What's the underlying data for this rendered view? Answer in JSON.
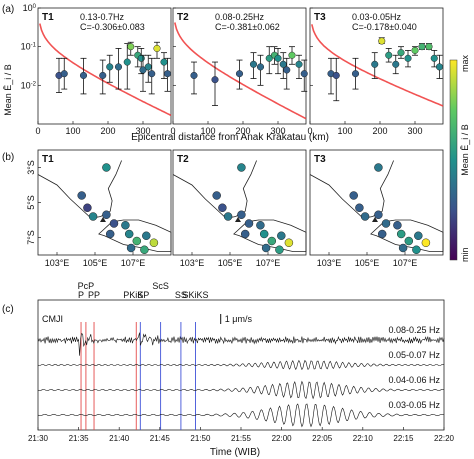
{
  "panel_a": {
    "label": "(a)",
    "ylabel": "Mean Ê_i / B",
    "xlabel": "Epicentral distance from Anak Krakatau (km)",
    "ytick_labels": [
      "10^0",
      "10^-1",
      "10^-2"
    ],
    "xtick_labels": [
      "0",
      "100",
      "200",
      "300"
    ]
  },
  "panel_b": {
    "label": "(b)",
    "ytick_labels": [
      "3°S",
      "5°S",
      "7°S"
    ],
    "xtick_labels": [
      "103°E",
      "105°E",
      "107°E"
    ],
    "titles": [
      "T1",
      "T2",
      "T3"
    ]
  },
  "colorbar": {
    "label": "Mean Ê_i / B",
    "max_label": "max",
    "min_label": "min",
    "colors": [
      "#440154",
      "#3b528b",
      "#21918c",
      "#5ec962",
      "#fde725"
    ]
  },
  "panel_c": {
    "label": "(c)",
    "station": "CMJI",
    "scale_label": "1 μm/s",
    "xlabel": "Time (WIB)",
    "xtick_labels": [
      "21:30",
      "21:35",
      "21:40",
      "21:45",
      "21:50",
      "21:55",
      "22:00",
      "22:05",
      "22:10",
      "22:15",
      "22:20"
    ],
    "trace_labels": [
      "0.08-0.25 Hz",
      "0.05-0.07 Hz",
      "0.04-0.06 Hz",
      "0.03-0.05 Hz"
    ],
    "phases": [
      {
        "name": "P",
        "time_min": 5.3,
        "group": "red"
      },
      {
        "name": "PcP",
        "time_min": 5.9,
        "group": "red"
      },
      {
        "name": "PP",
        "time_min": 6.9,
        "group": "red"
      },
      {
        "name": "PKiKP",
        "time_min": 12.1,
        "group": "red"
      },
      {
        "name": "S",
        "time_min": 12.6,
        "group": "blue"
      },
      {
        "name": "ScS",
        "time_min": 15.1,
        "group": "blue"
      },
      {
        "name": "SS",
        "time_min": 17.6,
        "group": "blue"
      },
      {
        "name": "SKiKS",
        "time_min": 19.4,
        "group": "blue"
      }
    ],
    "phase_colors": {
      "red": "#e34a4a",
      "blue": "#3f52d8"
    }
  },
  "chart_data": [
    {
      "type": "scatter",
      "panel": "T1",
      "title": "T1",
      "band": "0.13-0.7Hz",
      "corr": "C=-0.306±0.083",
      "xlim": [
        0,
        380
      ],
      "ylim_log10": [
        -3,
        0
      ],
      "fit": {
        "a": 0.42,
        "b": 0.0088
      },
      "points": [
        {
          "x": 60,
          "y": 0.018,
          "lo": 0.0065,
          "hi": 0.05,
          "c": 0.25
        },
        {
          "x": 75,
          "y": 0.02,
          "lo": 0.008,
          "hi": 0.05,
          "c": 0.3
        },
        {
          "x": 130,
          "y": 0.018,
          "lo": 0.006,
          "hi": 0.05,
          "c": 0.3
        },
        {
          "x": 185,
          "y": 0.018,
          "lo": 0.006,
          "hi": 0.045,
          "c": 0.3
        },
        {
          "x": 205,
          "y": 0.03,
          "lo": 0.012,
          "hi": 0.06,
          "c": 0.45
        },
        {
          "x": 230,
          "y": 0.03,
          "lo": 0.008,
          "hi": 0.09,
          "c": 0.35
        },
        {
          "x": 255,
          "y": 0.04,
          "lo": 0.008,
          "hi": 0.12,
          "c": 0.5
        },
        {
          "x": 265,
          "y": 0.1,
          "lo": 0.06,
          "hi": 0.13,
          "c": 0.8
        },
        {
          "x": 285,
          "y": 0.06,
          "lo": 0.03,
          "hi": 0.1,
          "c": 0.6
        },
        {
          "x": 295,
          "y": 0.05,
          "lo": 0.02,
          "hi": 0.09,
          "c": 0.5
        },
        {
          "x": 300,
          "y": 0.025,
          "lo": 0.007,
          "hi": 0.06,
          "c": 0.35
        },
        {
          "x": 315,
          "y": 0.03,
          "lo": 0.012,
          "hi": 0.06,
          "c": 0.45
        },
        {
          "x": 325,
          "y": 0.02,
          "lo": 0.006,
          "hi": 0.05,
          "c": 0.3
        },
        {
          "x": 340,
          "y": 0.09,
          "lo": 0.05,
          "hi": 0.13,
          "c": 0.95
        },
        {
          "x": 360,
          "y": 0.04,
          "lo": 0.015,
          "hi": 0.07,
          "c": 0.5
        },
        {
          "x": 370,
          "y": 0.02,
          "lo": 0.007,
          "hi": 0.05,
          "c": 0.3
        }
      ]
    },
    {
      "type": "scatter",
      "panel": "T2",
      "title": "T2",
      "band": "0.08-0.25Hz",
      "corr": "C=-0.381±0.062",
      "xlim": [
        0,
        380
      ],
      "ylim_log10": [
        -3,
        0
      ],
      "fit": {
        "a": 0.45,
        "b": 0.0095
      },
      "points": [
        {
          "x": 60,
          "y": 0.018,
          "lo": 0.006,
          "hi": 0.04,
          "c": 0.3
        },
        {
          "x": 120,
          "y": 0.014,
          "lo": 0.003,
          "hi": 0.04,
          "c": 0.25
        },
        {
          "x": 190,
          "y": 0.02,
          "lo": 0.008,
          "hi": 0.045,
          "c": 0.3
        },
        {
          "x": 230,
          "y": 0.035,
          "lo": 0.015,
          "hi": 0.07,
          "c": 0.4
        },
        {
          "x": 250,
          "y": 0.03,
          "lo": 0.01,
          "hi": 0.06,
          "c": 0.35
        },
        {
          "x": 275,
          "y": 0.05,
          "lo": 0.02,
          "hi": 0.1,
          "c": 0.55
        },
        {
          "x": 290,
          "y": 0.06,
          "lo": 0.035,
          "hi": 0.1,
          "c": 0.65
        },
        {
          "x": 300,
          "y": 0.05,
          "lo": 0.02,
          "hi": 0.09,
          "c": 0.5
        },
        {
          "x": 315,
          "y": 0.035,
          "lo": 0.015,
          "hi": 0.07,
          "c": 0.4
        },
        {
          "x": 325,
          "y": 0.025,
          "lo": 0.008,
          "hi": 0.05,
          "c": 0.3
        },
        {
          "x": 340,
          "y": 0.06,
          "lo": 0.035,
          "hi": 0.1,
          "c": 0.75
        },
        {
          "x": 360,
          "y": 0.035,
          "lo": 0.015,
          "hi": 0.06,
          "c": 0.45
        },
        {
          "x": 375,
          "y": 0.02,
          "lo": 0.007,
          "hi": 0.045,
          "c": 0.3
        }
      ]
    },
    {
      "type": "scatter",
      "panel": "T3",
      "title": "T3",
      "band": "0.03-0.05Hz",
      "corr": "C=-0.178±0.040",
      "xlim": [
        0,
        380
      ],
      "ylim_log10": [
        -3,
        0
      ],
      "fit": {
        "a": 0.4,
        "b": 0.0072
      },
      "points": [
        {
          "x": 60,
          "y": 0.02,
          "lo": 0.006,
          "hi": 0.05,
          "c": 0.3
        },
        {
          "x": 75,
          "y": 0.018,
          "lo": 0.004,
          "hi": 0.05,
          "c": 0.25
        },
        {
          "x": 130,
          "y": 0.02,
          "lo": 0.008,
          "hi": 0.05,
          "c": 0.3
        },
        {
          "x": 185,
          "y": 0.035,
          "lo": 0.015,
          "hi": 0.07,
          "c": 0.4
        },
        {
          "x": 205,
          "y": 0.14,
          "lo": 0.12,
          "hi": 0.17,
          "c": 0.95
        },
        {
          "x": 225,
          "y": 0.06,
          "lo": 0.04,
          "hi": 0.09,
          "c": 0.55
        },
        {
          "x": 245,
          "y": 0.035,
          "lo": 0.02,
          "hi": 0.06,
          "c": 0.4
        },
        {
          "x": 260,
          "y": 0.07,
          "lo": 0.05,
          "hi": 0.1,
          "c": 0.6
        },
        {
          "x": 280,
          "y": 0.05,
          "lo": 0.03,
          "hi": 0.08,
          "c": 0.5
        },
        {
          "x": 300,
          "y": 0.08,
          "lo": 0.06,
          "hi": 0.1,
          "c": 0.75
        },
        {
          "x": 320,
          "y": 0.1,
          "lo": 0.085,
          "hi": 0.12,
          "c": 0.65
        },
        {
          "x": 340,
          "y": 0.1,
          "lo": 0.085,
          "hi": 0.12,
          "c": 0.7
        },
        {
          "x": 355,
          "y": 0.05,
          "lo": 0.03,
          "hi": 0.08,
          "c": 0.5
        },
        {
          "x": 370,
          "y": 0.03,
          "lo": 0.015,
          "hi": 0.06,
          "c": 0.45
        }
      ]
    }
  ],
  "map_stations": [
    {
      "lon": 105.6,
      "lat": -3.0,
      "c": 0.45
    },
    {
      "lon": 104.3,
      "lat": -4.6,
      "c": 0.3
    },
    {
      "lon": 104.6,
      "lat": -5.3,
      "c": 0.25
    },
    {
      "lon": 104.9,
      "lat": -5.8,
      "c": 0.4
    },
    {
      "lon": 105.6,
      "lat": -5.7,
      "c": 0.3
    },
    {
      "lon": 106.0,
      "lat": -6.2,
      "c": 0.3
    },
    {
      "lon": 106.6,
      "lat": -6.3,
      "c": 0.35
    },
    {
      "lon": 105.8,
      "lat": -6.8,
      "c": 0.3
    },
    {
      "lon": 106.8,
      "lat": -6.8,
      "c": 0.5
    },
    {
      "lon": 107.2,
      "lat": -7.2,
      "c": 0.6
    },
    {
      "lon": 107.7,
      "lat": -6.9,
      "c": 0.4
    },
    {
      "lon": 108.1,
      "lat": -7.3,
      "c": 0.95
    },
    {
      "lon": 107.6,
      "lat": -7.7,
      "c": 0.55
    },
    {
      "lon": 106.9,
      "lat": -7.6,
      "c": 0.35
    }
  ]
}
